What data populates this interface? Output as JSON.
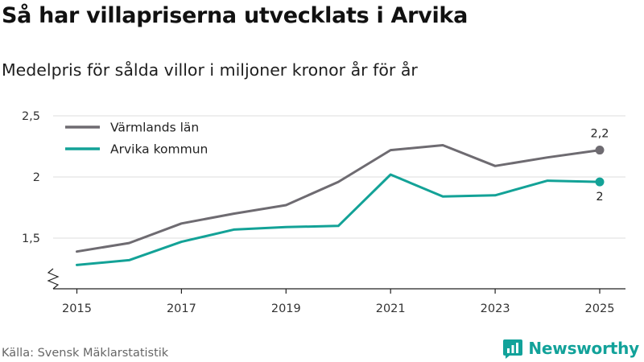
{
  "title": "Så har villapriserna utvecklats i Arvika",
  "subtitle": "Medelpris för sålda villor i miljoner kronor år för år",
  "source": "Källa: Svensk Mäklarstatistik",
  "brand": "Newsworthy",
  "colors": {
    "varmland": "#6e6b71",
    "arvika": "#13a297",
    "grid": "#dcdcdc",
    "axis": "#222222",
    "brand": "#12a29a"
  },
  "icons": {
    "brand": "newsworthy-logo-icon",
    "axis_break": "axis-break-icon"
  },
  "chart_data": {
    "type": "line",
    "title": "Så har villapriserna utvecklats i Arvika",
    "subtitle": "Medelpris för sålda villor i miljoner kronor år för år",
    "xlabel": "",
    "ylabel": "",
    "x": [
      2015,
      2016,
      2017,
      2018,
      2019,
      2020,
      2021,
      2022,
      2023,
      2024,
      2025
    ],
    "xlim": [
      2015,
      2025
    ],
    "ylim": [
      1.15,
      2.5
    ],
    "x_ticks": [
      {
        "value": 2015,
        "label": "2015"
      },
      {
        "value": 2017,
        "label": "2017"
      },
      {
        "value": 2019,
        "label": "2019"
      },
      {
        "value": 2021,
        "label": "2021"
      },
      {
        "value": 2023,
        "label": "2023"
      },
      {
        "value": 2025,
        "label": "2025"
      }
    ],
    "y_ticks": [
      {
        "value": 1.5,
        "label": "1,5"
      },
      {
        "value": 2,
        "label": "2"
      },
      {
        "value": 2.5,
        "label": "2,5"
      }
    ],
    "grid": true,
    "y_axis_break": true,
    "legend_position": "top-left",
    "series": [
      {
        "name": "Värmlands län",
        "color": "#6e6b71",
        "values": [
          1.39,
          1.46,
          1.62,
          1.7,
          1.77,
          1.96,
          2.22,
          2.26,
          2.09,
          2.16,
          2.22
        ],
        "end_label": "2,2"
      },
      {
        "name": "Arvika kommun",
        "color": "#13a297",
        "values": [
          1.28,
          1.32,
          1.47,
          1.57,
          1.59,
          1.6,
          2.02,
          1.84,
          1.85,
          1.97,
          1.96
        ],
        "end_label": "2"
      }
    ]
  }
}
